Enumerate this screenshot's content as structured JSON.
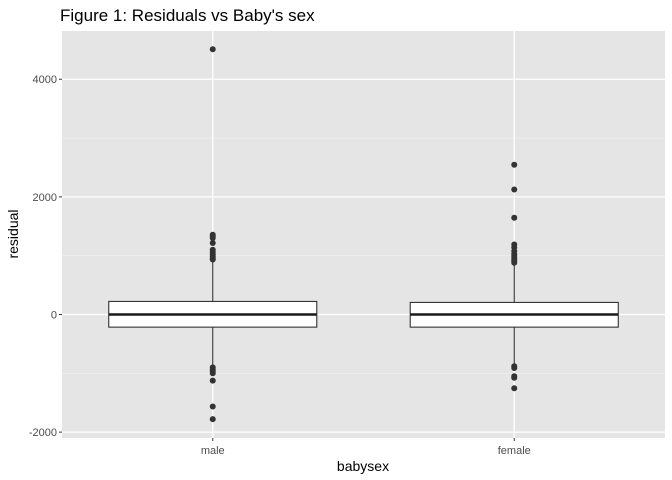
{
  "chart_data": {
    "type": "boxplot",
    "title": "Figure 1: Residuals vs Baby's sex",
    "xlabel": "babysex",
    "ylabel": "residual",
    "categories": [
      "male",
      "female"
    ],
    "ylim": [
      -2100,
      4820
    ],
    "yticks": [
      -2000,
      0,
      2000,
      4000
    ],
    "ytick_labels": [
      "-2000",
      "0",
      "2000",
      "4000"
    ],
    "grid": true,
    "boxes": [
      {
        "category": "male",
        "q1": -215,
        "median": 0,
        "q3": 222,
        "whisker_low": -880,
        "whisker_high": 905,
        "outliers_high": [
          4510,
          1355,
          1330,
          1300,
          1215,
          1100,
          1060,
          1020,
          985,
          955,
          935
        ],
        "outliers_low": [
          -900,
          -935,
          -965,
          -1000,
          -1125,
          -1565,
          -1780
        ]
      },
      {
        "category": "female",
        "q1": -215,
        "median": 0,
        "q3": 205,
        "whisker_low": -860,
        "whisker_high": 870,
        "outliers_high": [
          2545,
          2125,
          1645,
          1190,
          1140,
          1080,
          1030,
          995,
          960,
          930,
          905,
          880
        ],
        "outliers_low": [
          -880,
          -910,
          -1050,
          -1075,
          -1255
        ]
      }
    ],
    "colors": {
      "panel_background": "#e5e5e5",
      "grid_major": "#ffffff",
      "grid_minor": "#f2f2f2",
      "box_fill": "#ffffff",
      "box_line": "#333333",
      "point": "#333333",
      "tick_text": "#4d4d4d"
    }
  }
}
